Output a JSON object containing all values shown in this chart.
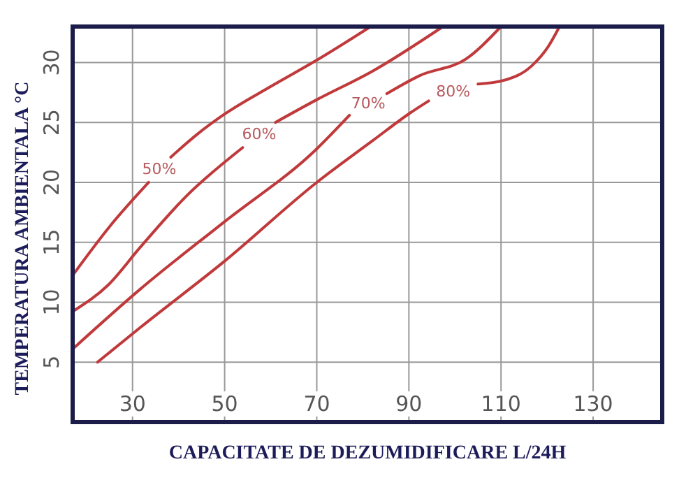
{
  "chart_data": {
    "type": "line",
    "xlabel": "CAPACITATE DE DEZUMIDIFICARE L/24H",
    "ylabel": "TEMPERATURA AMBIENTALA °C",
    "xlim": [
      17,
      145
    ],
    "ylim": [
      0,
      33
    ],
    "xticks": [
      30,
      50,
      70,
      90,
      110,
      130
    ],
    "yticks": [
      5,
      10,
      15,
      20,
      25,
      30
    ],
    "grid": true,
    "series": [
      {
        "name": "50%",
        "color": "#c0393b",
        "x": [
          17.3,
          25,
          33.5,
          35.8,
          38.3,
          44,
          50,
          60,
          70,
          81.7
        ],
        "values": [
          12.4,
          16.3,
          20,
          null,
          22.1,
          24,
          25.7,
          28,
          30.2,
          33
        ]
      },
      {
        "name": "60%",
        "color": "#c0393b",
        "x": [
          17.3,
          24.6,
          31.7,
          41.8,
          53.9,
          57.5,
          61,
          70,
          82.2,
          97.4
        ],
        "values": [
          9.3,
          11.4,
          14.6,
          18.9,
          22.9,
          null,
          25,
          26.9,
          29.3,
          33
        ]
      },
      {
        "name": "70%",
        "color": "#c0393b",
        "x": [
          17.3,
          31.7,
          49.9,
          70,
          77.1,
          81.2,
          85.2,
          92.3,
          102.4,
          110
        ],
        "values": [
          6.2,
          11.1,
          16.7,
          22.8,
          25.6,
          null,
          27.4,
          28.9,
          30.3,
          33
        ]
      },
      {
        "name": "80%",
        "color": "#c0393b",
        "x": [
          22.4,
          31.7,
          49.9,
          70,
          82.2,
          90.3,
          94.3,
          99.6,
          105,
          110.5,
          116.6,
          120.2,
          122.7
        ],
        "values": [
          5,
          7.9,
          13.4,
          20,
          23.5,
          25.8,
          26.8,
          null,
          28.2,
          28.5,
          29.7,
          31.3,
          33
        ]
      }
    ]
  }
}
